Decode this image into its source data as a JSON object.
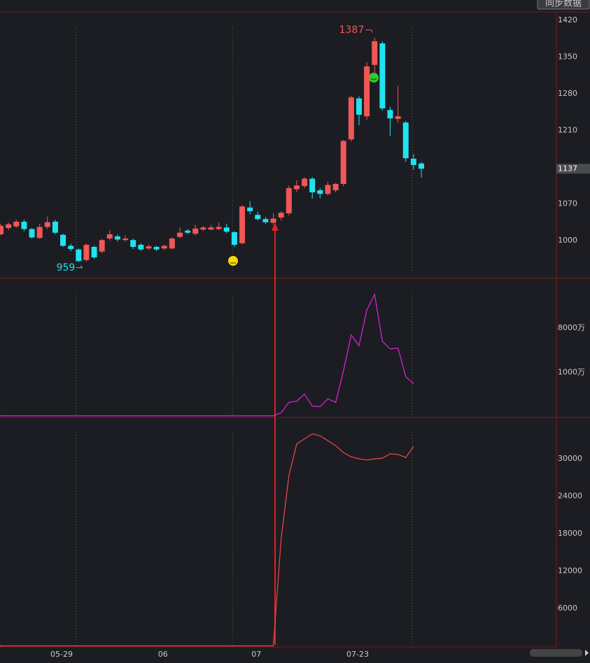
{
  "toolbar": {
    "sync_button": "同步数据"
  },
  "chart_data": [
    {
      "type": "candlestick",
      "up_color": "#f25757",
      "down_color": "#1ee3ef",
      "categories": [
        null,
        null,
        null,
        null,
        null,
        null,
        null,
        null,
        "05-29",
        null,
        null,
        null,
        null,
        null,
        null,
        null,
        null,
        null,
        null,
        null,
        null,
        "06",
        null,
        null,
        null,
        null,
        null,
        null,
        null,
        null,
        null,
        null,
        null,
        "07",
        null,
        null,
        null,
        null,
        null,
        null,
        null,
        null,
        null,
        null,
        null,
        null,
        "07-23",
        null,
        null,
        null,
        null,
        null,
        null,
        null,
        null
      ],
      "open": [
        1012,
        1024,
        1027,
        1036,
        1022,
        1005,
        1026,
        1036,
        1011,
        990,
        983,
        963,
        988,
        979,
        1004,
        1008,
        1001,
        1001,
        992,
        985,
        988,
        985,
        985,
        1007,
        1019,
        1013,
        1021,
        1021,
        1022,
        1025,
        1016,
        995,
        1063,
        1049,
        1041,
        1034,
        1044,
        1052,
        1098,
        1104,
        1118,
        1096,
        1089,
        1096,
        1108,
        1193,
        1271,
        1237,
        1335,
        1376,
        1249,
        1232,
        1225,
        1156,
        1147
      ],
      "high": [
        1032,
        1035,
        1040,
        1040,
        1024,
        1032,
        1046,
        1040,
        1013,
        994,
        985,
        994,
        990,
        1003,
        1020,
        1012,
        1010,
        1004,
        995,
        993,
        990,
        992,
        1006,
        1025,
        1022,
        1030,
        1028,
        1030,
        1035,
        1032,
        1018,
        1068,
        1075,
        1055,
        1045,
        1052,
        1056,
        1105,
        1115,
        1121,
        1121,
        1100,
        1112,
        1110,
        1192,
        1276,
        1275,
        1340,
        1387,
        1380,
        1255,
        1295,
        1228,
        1165,
        1150
      ],
      "low": [
        1010,
        1020,
        1024,
        1018,
        1004,
        1003,
        1022,
        1012,
        988,
        980,
        959,
        960,
        965,
        976,
        1000,
        998,
        998,
        984,
        980,
        982,
        980,
        982,
        983,
        1005,
        1012,
        1010,
        1018,
        1020,
        1020,
        1014,
        988,
        993,
        1050,
        1038,
        1032,
        1030,
        1038,
        1048,
        1092,
        1100,
        1080,
        1080,
        1086,
        1092,
        1104,
        1189,
        1220,
        1230,
        1320,
        1248,
        1200,
        1225,
        1150,
        1135,
        1120
      ],
      "close": [
        1028,
        1031,
        1036,
        1022,
        1006,
        1026,
        1035,
        1015,
        990,
        984,
        961,
        992,
        968,
        1001,
        1012,
        1002,
        1004,
        988,
        983,
        989,
        983,
        990,
        1004,
        1015,
        1015,
        1023,
        1025,
        1025,
        1026,
        1017,
        992,
        1065,
        1056,
        1041,
        1035,
        1042,
        1053,
        1100,
        1105,
        1118,
        1092,
        1089,
        1106,
        1108,
        1190,
        1273,
        1240,
        1332,
        1380,
        1252,
        1233,
        1237,
        1157,
        1144,
        1137
      ],
      "ylim": [
        928,
        1436
      ],
      "yticks": [
        1420,
        1350,
        1280,
        1210,
        1070,
        1000
      ]
    },
    {
      "type": "line",
      "log_scale": true,
      "color": "#d61ed6",
      "values": [
        130,
        130,
        130,
        130,
        130,
        130,
        130,
        130,
        130,
        130,
        130,
        130,
        130,
        130,
        130,
        130,
        130,
        130,
        130,
        130,
        130,
        130,
        130,
        130,
        130,
        130,
        130,
        130,
        130,
        130,
        130,
        130,
        130,
        130,
        130,
        130,
        150,
        245,
        260,
        360,
        205,
        200,
        290,
        245,
        1070,
        5800,
        3520,
        18800,
        39000,
        4300,
        3000,
        3150,
        820,
        590,
        null
      ],
      "ylim": [
        120,
        83000
      ],
      "yticks": [
        {
          "value": 8000,
          "label": "8000万"
        },
        {
          "value": 1000,
          "label": "1000万"
        }
      ]
    },
    {
      "type": "line",
      "color": "#f04848",
      "values": [
        0,
        0,
        0,
        0,
        0,
        0,
        0,
        0,
        0,
        0,
        0,
        0,
        0,
        0,
        0,
        0,
        0,
        0,
        0,
        0,
        0,
        0,
        0,
        0,
        0,
        0,
        0,
        0,
        0,
        0,
        0,
        0,
        0,
        0,
        0,
        0,
        17200,
        27300,
        32400,
        33200,
        34000,
        33700,
        32900,
        32100,
        31000,
        30300,
        30000,
        29800,
        30000,
        30100,
        30800,
        30700,
        30200,
        32000,
        null
      ],
      "ylim": [
        -170,
        36620
      ],
      "yticks": [
        30000,
        24000,
        18000,
        12000,
        6000
      ]
    }
  ]
}
